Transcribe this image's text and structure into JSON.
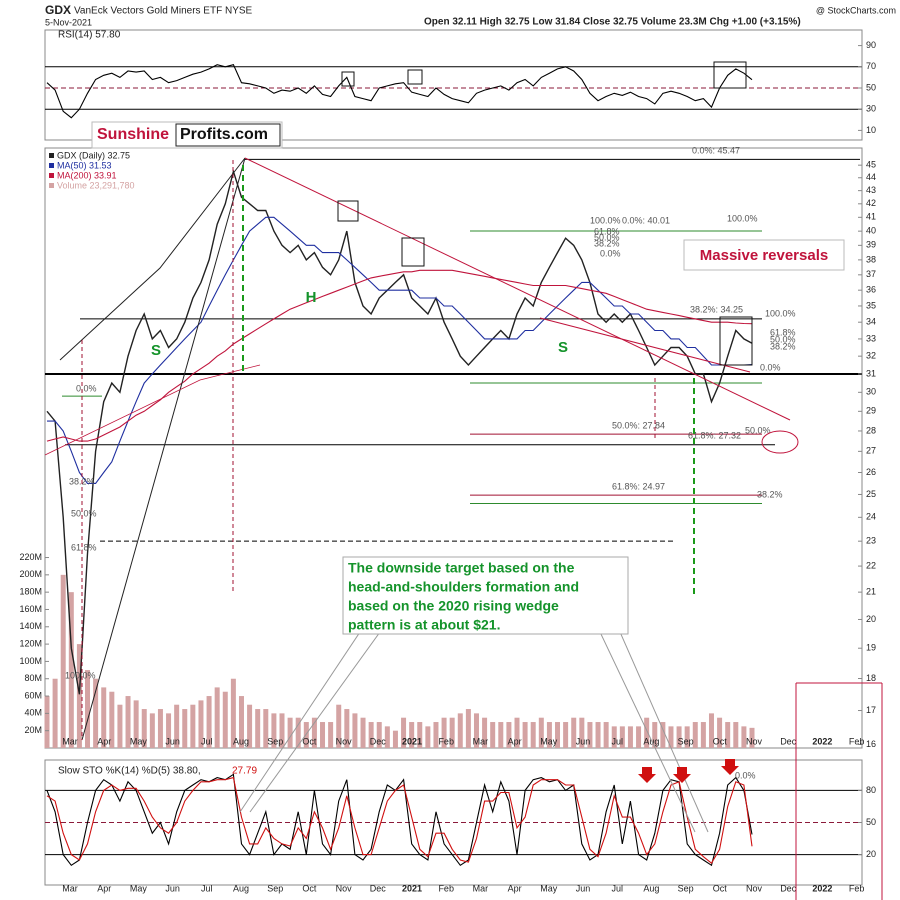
{
  "header": {
    "symbol": "GDX",
    "name": "VanEck Vectors Gold Miners ETF  NYSE",
    "date": "5-Nov-2021",
    "quote": "Open 32.11  High 32.75  Low 31.84  Close 32.75  Volume 23.3M  Chg +1.00 (+3.15%)",
    "source": "@ StockCharts.com"
  },
  "logo": {
    "left": "Sunshine",
    "right": "Profits.com"
  },
  "callouts": {
    "reversals": "Massive reversals",
    "target": [
      "The downside target based on the",
      "head-and-shoulders formation and",
      "based on the 2020 rising wedge",
      "pattern is at about $21."
    ]
  },
  "chart_data": [
    {
      "type": "line",
      "title": "RSI(14) 57.80",
      "ylim": [
        0,
        100
      ],
      "yticks": [
        10,
        30,
        50,
        70,
        90
      ],
      "levels": [
        {
          "value": 70,
          "color": "#000000"
        },
        {
          "value": 30,
          "color": "#000000"
        },
        {
          "value": 50,
          "color": "#8b1a3a",
          "dashed": true
        }
      ],
      "series": [
        {
          "color": "#000000",
          "values": [
            55,
            48,
            28,
            22,
            30,
            45,
            58,
            62,
            64,
            60,
            66,
            65,
            66,
            58,
            60,
            55,
            57,
            60,
            63,
            65,
            68,
            72,
            70,
            72,
            55,
            54,
            52,
            50,
            45,
            48,
            47,
            50,
            45,
            52,
            44,
            42,
            52,
            60,
            42,
            40,
            38,
            50,
            52,
            54,
            55,
            46,
            44,
            42,
            50,
            44,
            40,
            38,
            36,
            45,
            48,
            50,
            52,
            48,
            55,
            58,
            52,
            60,
            64,
            68,
            70,
            66,
            58,
            45,
            38,
            42,
            45,
            43,
            46,
            42,
            40,
            35,
            45,
            47,
            45,
            42,
            38,
            40,
            32,
            50,
            62,
            68,
            64,
            57.8
          ]
        }
      ]
    },
    {
      "type": "line",
      "log_scale": true,
      "ylim": [
        15.9,
        46.4
      ],
      "yticks": [
        16,
        17,
        18,
        19,
        20,
        21,
        22,
        23,
        24,
        25,
        26,
        27,
        28,
        29,
        30,
        31,
        32,
        33,
        34,
        35,
        36,
        37,
        38,
        39,
        40,
        41,
        42,
        43,
        44,
        45
      ],
      "y2lim": [
        0,
        693
      ],
      "y2ticks": [
        {
          "value": 20,
          "label": "20M"
        },
        {
          "value": 40,
          "label": "40M"
        },
        {
          "value": 60,
          "label": "60M"
        },
        {
          "value": 80,
          "label": "80M"
        },
        {
          "value": 100,
          "label": "100M"
        },
        {
          "value": 120,
          "label": "120M"
        },
        {
          "value": 140,
          "label": "140M"
        },
        {
          "value": 160,
          "label": "160M"
        },
        {
          "value": 180,
          "label": "180M"
        },
        {
          "value": 200,
          "label": "200M"
        },
        {
          "value": 220,
          "label": "220M"
        }
      ],
      "x_labels": [
        "Mar",
        "Apr",
        "May",
        "Jun",
        "Jul",
        "Aug",
        "Sep",
        "Oct",
        "Nov",
        "Dec",
        "2021",
        "Feb",
        "Mar",
        "Apr",
        "May",
        "Jun",
        "Jul",
        "Aug",
        "Sep",
        "Oct",
        "Nov",
        "Dec",
        "2022",
        "Feb"
      ],
      "series": [
        {
          "name": "GDX (Daily) 32.75",
          "color": "#222222",
          "values": [
            29,
            28.5,
            24,
            19,
            17.5,
            22.5,
            27,
            29.5,
            30.5,
            30,
            32,
            33.5,
            34.5,
            33,
            33.5,
            32.5,
            33,
            34,
            35.5,
            36.5,
            38,
            40.5,
            42,
            44.5,
            42.5,
            42,
            41.5,
            41.5,
            40,
            39,
            38.5,
            39,
            38,
            38.5,
            37.5,
            37,
            38,
            40,
            36.5,
            35,
            34.5,
            35.5,
            36,
            36.5,
            37,
            35.5,
            35,
            34.5,
            35.5,
            34,
            33,
            32,
            31.5,
            32,
            32.5,
            33,
            33.5,
            33,
            34.5,
            35.5,
            35,
            36.5,
            37.5,
            38.5,
            39.5,
            39,
            38,
            36.5,
            34.5,
            34,
            34.5,
            34,
            34.5,
            33.5,
            32.5,
            31.5,
            32,
            32.5,
            32.5,
            32,
            31,
            31,
            29.5,
            30.5,
            32,
            33.5,
            33,
            32.75
          ]
        },
        {
          "name": "MA(50) 31.53",
          "color": "#1f2fa0",
          "values": [
            28.5,
            28.5,
            28,
            27,
            26,
            25.5,
            25.5,
            26,
            26.5,
            27.5,
            28.5,
            29.5,
            30.5,
            31,
            31.5,
            32,
            32.5,
            33,
            33.5,
            34,
            35,
            36,
            37,
            38,
            39,
            40,
            40.5,
            41,
            41,
            40.5,
            40,
            39.5,
            39,
            39,
            38.5,
            38.5,
            38.5,
            38,
            37.5,
            37,
            36.5,
            36,
            36,
            36,
            36,
            36,
            35.5,
            35.5,
            35.5,
            35,
            35,
            34.5,
            34,
            33.5,
            33,
            33,
            33,
            33,
            33,
            33.5,
            33.5,
            34,
            34.5,
            35,
            35.5,
            36,
            36.5,
            36.5,
            36,
            35.5,
            35,
            35,
            34.5,
            34.5,
            34,
            33.5,
            33.5,
            33,
            33,
            32.5,
            32.5,
            32,
            31.5,
            31.5,
            31.5,
            31.5,
            31.5,
            31.53
          ]
        },
        {
          "name": "MA(200) 33.91",
          "color": "#c0143c",
          "values": [
            27.5,
            27.6,
            27.7,
            27.6,
            27.5,
            27.5,
            27.6,
            27.8,
            28,
            28.2,
            28.5,
            28.8,
            29,
            29.3,
            29.6,
            30,
            30.3,
            30.6,
            31,
            31.3,
            31.6,
            32,
            32.3,
            32.7,
            33,
            33.3,
            33.6,
            33.9,
            34.2,
            34.5,
            34.8,
            35,
            35.2,
            35.4,
            35.6,
            35.8,
            36,
            36.2,
            36.4,
            36.6,
            36.8,
            36.9,
            37,
            37.1,
            37.2,
            37.2,
            37.3,
            37.3,
            37.3,
            37.3,
            37.3,
            37.2,
            37.1,
            37,
            36.9,
            36.8,
            36.7,
            36.6,
            36.5,
            36.4,
            36.3,
            36.3,
            36.3,
            36.3,
            36.3,
            36.2,
            36.1,
            36,
            35.9,
            35.8,
            35.6,
            35.4,
            35.2,
            35,
            34.8,
            34.7,
            34.6,
            34.5,
            34.4,
            34.3,
            34.2,
            34.1,
            34,
            34,
            34,
            33.95,
            33.92,
            33.91
          ]
        },
        {
          "name": "Volume 23,291,780",
          "color": "#d4a3a3",
          "axis": "y2",
          "type": "bar",
          "values": [
            60,
            80,
            200,
            180,
            120,
            90,
            80,
            70,
            65,
            50,
            60,
            55,
            45,
            40,
            45,
            40,
            50,
            45,
            50,
            55,
            60,
            70,
            65,
            80,
            60,
            50,
            45,
            45,
            40,
            40,
            35,
            35,
            30,
            35,
            30,
            30,
            50,
            45,
            40,
            35,
            30,
            30,
            25,
            20,
            35,
            30,
            30,
            25,
            30,
            35,
            35,
            40,
            45,
            40,
            35,
            30,
            30,
            30,
            35,
            30,
            30,
            35,
            30,
            30,
            30,
            35,
            35,
            30,
            30,
            30,
            25,
            25,
            25,
            25,
            35,
            30,
            30,
            25,
            25,
            25,
            30,
            30,
            40,
            35,
            30,
            30,
            25,
            23.29
          ]
        }
      ],
      "levels": [
        {
          "value": 45.47,
          "color": "#000000"
        },
        {
          "value": 40.01,
          "color": "#2e8b2e"
        },
        {
          "value": 34.2,
          "color": "#000000"
        },
        {
          "value": 31,
          "color": "#000000",
          "width": 2
        },
        {
          "value": 30.5,
          "color": "#2e8b2e"
        },
        {
          "value": 29.8,
          "color": "#2e8b2e"
        },
        {
          "value": 27.84,
          "color": "#a01030"
        },
        {
          "value": 27.32,
          "color": "#000000"
        },
        {
          "value": 24.97,
          "color": "#a01030"
        },
        {
          "value": 24.6,
          "color": "#2e8b2e"
        },
        {
          "value": 23,
          "color": "#000000",
          "dashed": true
        }
      ],
      "annotations": [
        "0.0%: 45.47",
        "100.0%",
        "0.0%: 40.01",
        "100.0%",
        "61.8%",
        "50.0%",
        "38.2%",
        "0.0%",
        "38.2%: 34.25",
        "100.0%",
        "61.8%",
        "50.0%",
        "38.2%",
        "0.0%",
        "50.0%: 27.84",
        "61.8%: 27.32",
        "50.0%",
        "61.8%: 24.97",
        "38.2%",
        "0.0%",
        "38.2%",
        "50.0%",
        "61.8%",
        "100.0%"
      ],
      "patterns": [
        "S",
        "H",
        "S"
      ]
    },
    {
      "type": "line",
      "title": "Slow STO %K(14) %D(5) 38.80,",
      "title_d": "27.79",
      "ylim": [
        0,
        100
      ],
      "yticks": [
        20,
        50,
        80
      ],
      "annotation": "0.0%",
      "levels": [
        {
          "value": 80,
          "color": "#000000"
        },
        {
          "value": 50,
          "color": "#8b1a3a",
          "dashed": true
        },
        {
          "value": 20,
          "color": "#000000"
        }
      ],
      "series": [
        {
          "color": "#000000",
          "values": [
            80,
            60,
            20,
            10,
            15,
            50,
            80,
            90,
            85,
            70,
            88,
            80,
            60,
            40,
            50,
            30,
            60,
            80,
            85,
            90,
            88,
            92,
            90,
            95,
            30,
            20,
            40,
            60,
            20,
            30,
            25,
            60,
            20,
            80,
            30,
            20,
            70,
            90,
            20,
            15,
            25,
            60,
            85,
            80,
            90,
            30,
            20,
            15,
            60,
            30,
            20,
            10,
            15,
            50,
            85,
            60,
            88,
            70,
            20,
            80,
            90,
            92,
            88,
            90,
            80,
            85,
            30,
            15,
            20,
            60,
            85,
            30,
            70,
            20,
            15,
            40,
            80,
            90,
            88,
            30,
            20,
            15,
            10,
            40,
            85,
            92,
            80,
            38.8
          ]
        },
        {
          "color": "#d01010",
          "values": [
            75,
            70,
            40,
            20,
            15,
            30,
            60,
            80,
            85,
            80,
            82,
            82,
            70,
            55,
            45,
            40,
            50,
            70,
            80,
            88,
            88,
            90,
            90,
            92,
            55,
            30,
            30,
            45,
            35,
            30,
            28,
            45,
            35,
            60,
            45,
            25,
            45,
            75,
            45,
            20,
            20,
            45,
            70,
            80,
            85,
            55,
            25,
            18,
            40,
            40,
            25,
            15,
            13,
            35,
            70,
            70,
            78,
            78,
            45,
            55,
            85,
            90,
            90,
            90,
            85,
            85,
            55,
            25,
            18,
            40,
            75,
            55,
            55,
            40,
            20,
            30,
            60,
            85,
            88,
            55,
            25,
            18,
            12,
            25,
            65,
            88,
            85,
            27.79
          ]
        }
      ]
    }
  ]
}
